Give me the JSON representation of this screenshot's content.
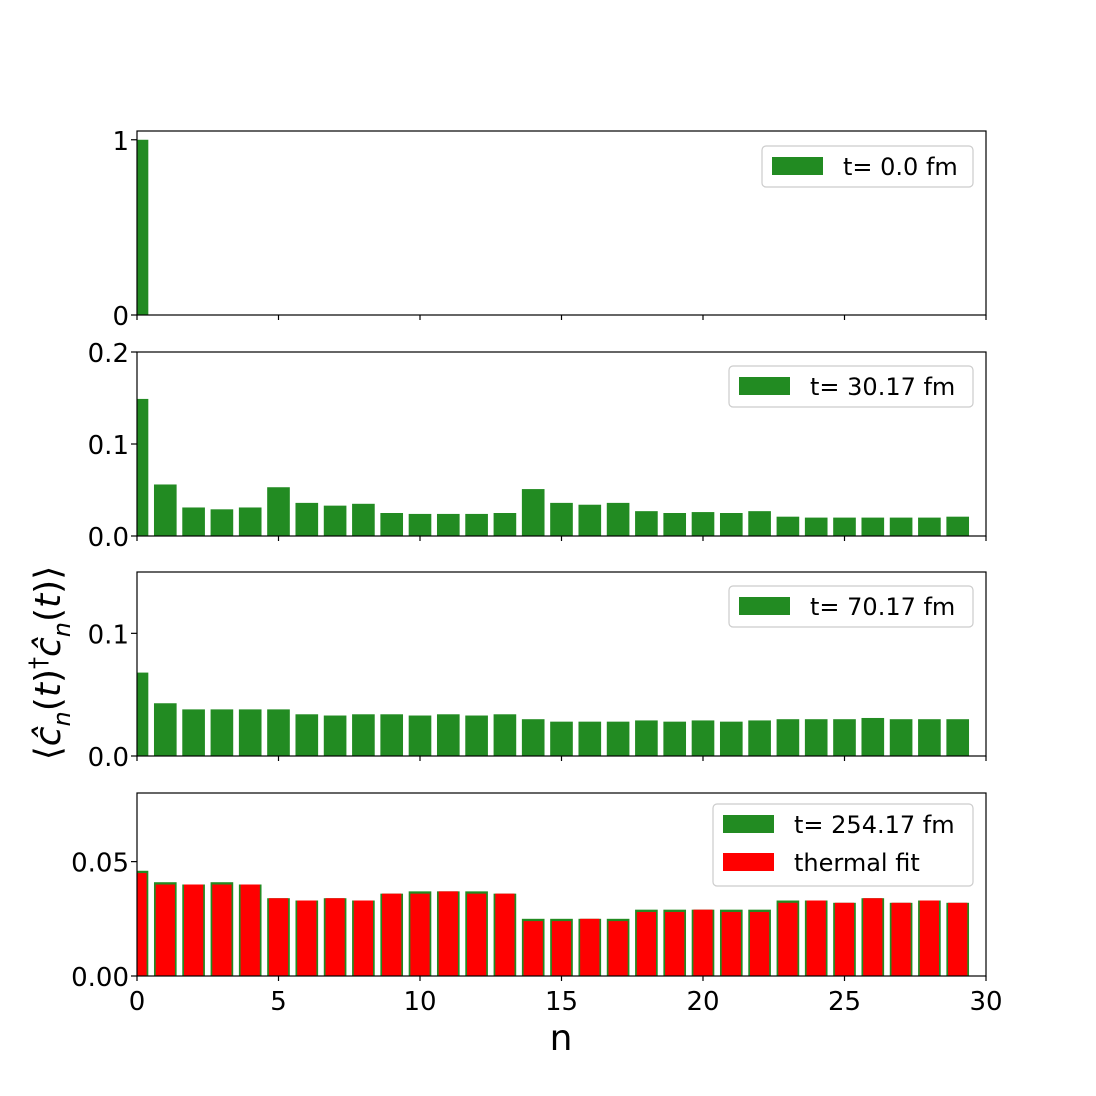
{
  "chart_data": [
    {
      "type": "bar",
      "x": [
        0,
        1,
        2,
        3,
        4,
        5,
        6,
        7,
        8,
        9,
        10,
        11,
        12,
        13,
        14,
        15,
        16,
        17,
        18,
        19,
        20,
        21,
        22,
        23,
        24,
        25,
        26,
        27,
        28,
        29
      ],
      "series": [
        {
          "name": "t= 0.0 fm",
          "color": "#228b22",
          "values": [
            1,
            0,
            0,
            0,
            0,
            0,
            0,
            0,
            0,
            0,
            0,
            0,
            0,
            0,
            0,
            0,
            0,
            0,
            0,
            0,
            0,
            0,
            0,
            0,
            0,
            0,
            0,
            0,
            0,
            0
          ]
        }
      ],
      "xlim": [
        0,
        30
      ],
      "ylim": [
        0,
        1.05
      ],
      "yticks": [
        {
          "value": 0,
          "label": "0"
        },
        {
          "value": 1,
          "label": "1"
        }
      ],
      "legend_position": "top-right"
    },
    {
      "type": "bar",
      "x": [
        0,
        1,
        2,
        3,
        4,
        5,
        6,
        7,
        8,
        9,
        10,
        11,
        12,
        13,
        14,
        15,
        16,
        17,
        18,
        19,
        20,
        21,
        22,
        23,
        24,
        25,
        26,
        27,
        28,
        29
      ],
      "series": [
        {
          "name": "t= 30.17 fm",
          "color": "#228b22",
          "values": [
            0.149,
            0.056,
            0.031,
            0.029,
            0.031,
            0.053,
            0.036,
            0.033,
            0.035,
            0.025,
            0.024,
            0.024,
            0.024,
            0.025,
            0.051,
            0.036,
            0.034,
            0.036,
            0.027,
            0.025,
            0.026,
            0.025,
            0.027,
            0.021,
            0.02,
            0.02,
            0.02,
            0.02,
            0.02,
            0.021
          ]
        }
      ],
      "xlim": [
        0,
        30
      ],
      "ylim": [
        0,
        0.2
      ],
      "yticks": [
        {
          "value": 0,
          "label": "0.0"
        },
        {
          "value": 0.1,
          "label": "0.1"
        },
        {
          "value": 0.2,
          "label": "0.2"
        }
      ],
      "legend_position": "top-right"
    },
    {
      "type": "bar",
      "x": [
        0,
        1,
        2,
        3,
        4,
        5,
        6,
        7,
        8,
        9,
        10,
        11,
        12,
        13,
        14,
        15,
        16,
        17,
        18,
        19,
        20,
        21,
        22,
        23,
        24,
        25,
        26,
        27,
        28,
        29
      ],
      "series": [
        {
          "name": "t= 70.17 fm",
          "color": "#228b22",
          "values": [
            0.068,
            0.043,
            0.038,
            0.038,
            0.038,
            0.038,
            0.034,
            0.033,
            0.034,
            0.034,
            0.033,
            0.034,
            0.033,
            0.034,
            0.03,
            0.028,
            0.028,
            0.028,
            0.029,
            0.028,
            0.029,
            0.028,
            0.029,
            0.03,
            0.03,
            0.03,
            0.031,
            0.03,
            0.03,
            0.03
          ]
        }
      ],
      "xlim": [
        0,
        30
      ],
      "ylim": [
        0,
        0.15
      ],
      "yticks": [
        {
          "value": 0,
          "label": "0.0"
        },
        {
          "value": 0.1,
          "label": "0.1"
        }
      ],
      "legend_position": "top-right"
    },
    {
      "type": "bar",
      "x": [
        0,
        1,
        2,
        3,
        4,
        5,
        6,
        7,
        8,
        9,
        10,
        11,
        12,
        13,
        14,
        15,
        16,
        17,
        18,
        19,
        20,
        21,
        22,
        23,
        24,
        25,
        26,
        27,
        28,
        29
      ],
      "series": [
        {
          "name": "t= 254.17 fm",
          "color": "#228b22",
          "values": [
            0.046,
            0.041,
            0.04,
            0.041,
            0.04,
            0.034,
            0.033,
            0.034,
            0.033,
            0.036,
            0.037,
            0.037,
            0.037,
            0.036,
            0.025,
            0.025,
            0.025,
            0.025,
            0.029,
            0.029,
            0.029,
            0.029,
            0.029,
            0.033,
            0.033,
            0.032,
            0.034,
            0.032,
            0.033,
            0.032
          ]
        },
        {
          "name": "thermal fit",
          "color": "#ff0000",
          "values": [
            0.045,
            0.04,
            0.04,
            0.04,
            0.04,
            0.034,
            0.033,
            0.034,
            0.033,
            0.036,
            0.036,
            0.037,
            0.036,
            0.036,
            0.024,
            0.024,
            0.025,
            0.024,
            0.028,
            0.028,
            0.029,
            0.028,
            0.028,
            0.032,
            0.033,
            0.032,
            0.034,
            0.032,
            0.033,
            0.032
          ]
        }
      ],
      "xlim": [
        0,
        30
      ],
      "ylim": [
        0,
        0.08
      ],
      "yticks": [
        {
          "value": 0,
          "label": "0.00"
        },
        {
          "value": 0.05,
          "label": "0.05"
        }
      ],
      "xticks": [
        {
          "value": 0,
          "label": "0"
        },
        {
          "value": 5,
          "label": "5"
        },
        {
          "value": 10,
          "label": "10"
        },
        {
          "value": 15,
          "label": "15"
        },
        {
          "value": 20,
          "label": "20"
        },
        {
          "value": 25,
          "label": "25"
        },
        {
          "value": 30,
          "label": "30"
        }
      ],
      "legend_position": "top-right"
    }
  ],
  "xlabel": "n",
  "ylabel_parts": [
    "⟨",
    "ĉ",
    "n",
    "(",
    "t",
    ")",
    "†",
    "ĉ",
    "n",
    "(",
    "t",
    ")",
    "⟩"
  ]
}
